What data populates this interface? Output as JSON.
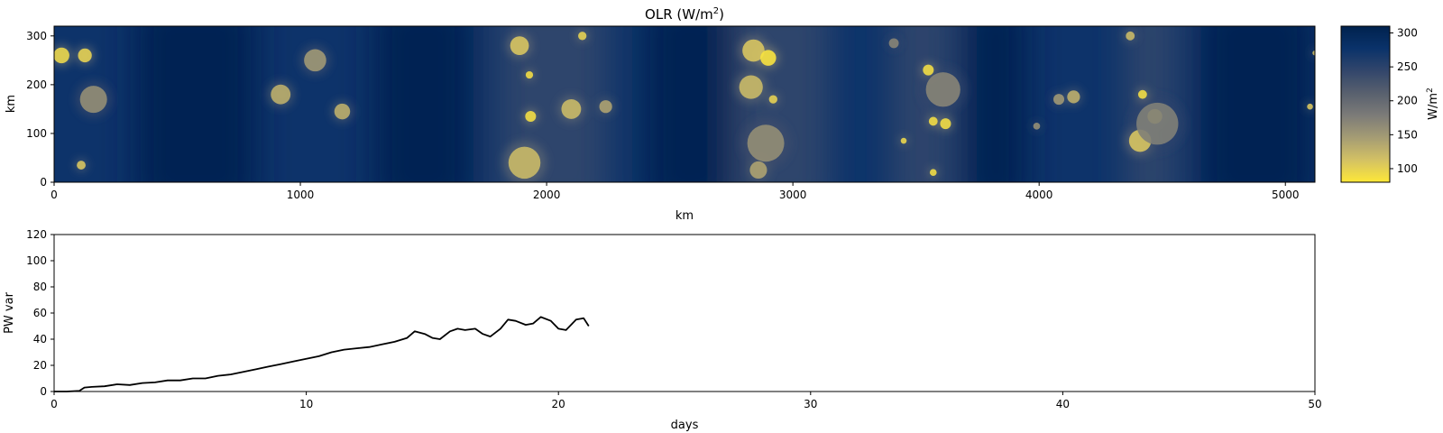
{
  "figure": {
    "background": "#ffffff"
  },
  "chart_data": [
    {
      "type": "heatmap",
      "title": "OLR (W/m²)",
      "title_base": "OLR (W/m",
      "title_sup": "2",
      "title_end": ")",
      "xlabel": "km",
      "ylabel": "km",
      "xlim": [
        0,
        5120
      ],
      "ylim": [
        0,
        320
      ],
      "xticks": [
        0,
        1000,
        2000,
        3000,
        4000,
        5000
      ],
      "yticks": [
        0,
        100,
        200,
        300
      ],
      "colormap": "cividis_r",
      "colorbar": {
        "label": "W/m²",
        "label_base": "W/m",
        "label_sup": "2",
        "range": [
          80,
          310
        ],
        "ticks": [
          100,
          150,
          200,
          250,
          300
        ],
        "colors": [
          "#fee838",
          "#d3c164",
          "#a59c74",
          "#7c7b78",
          "#58606e",
          "#32466b",
          "#0a326a",
          "#00224e"
        ]
      },
      "background_value": 275,
      "clear_bands_km": [
        [
          330,
          820
        ],
        [
          1300,
          1700
        ],
        [
          2400,
          2750
        ],
        [
          3700,
          3950
        ],
        [
          4650,
          5120
        ]
      ],
      "moist_bands_km": [
        [
          1800,
          2250
        ],
        [
          2750,
          3150
        ],
        [
          3400,
          3650
        ],
        [
          4350,
          4560
        ]
      ],
      "cells": [
        {
          "x": 30,
          "y": 260,
          "r": 32,
          "olr": 95
        },
        {
          "x": 125,
          "y": 260,
          "r": 28,
          "olr": 100
        },
        {
          "x": 160,
          "y": 170,
          "r": 55,
          "olr": 160
        },
        {
          "x": 110,
          "y": 35,
          "r": 18,
          "olr": 110
        },
        {
          "x": 920,
          "y": 180,
          "r": 40,
          "olr": 130
        },
        {
          "x": 1060,
          "y": 250,
          "r": 45,
          "olr": 150
        },
        {
          "x": 1170,
          "y": 145,
          "r": 32,
          "olr": 130
        },
        {
          "x": 1890,
          "y": 280,
          "r": 38,
          "olr": 110
        },
        {
          "x": 1930,
          "y": 220,
          "r": 15,
          "olr": 90
        },
        {
          "x": 1935,
          "y": 135,
          "r": 22,
          "olr": 90
        },
        {
          "x": 1910,
          "y": 40,
          "r": 65,
          "olr": 120
        },
        {
          "x": 2100,
          "y": 150,
          "r": 40,
          "olr": 120
        },
        {
          "x": 2145,
          "y": 300,
          "r": 17,
          "olr": 100
        },
        {
          "x": 2240,
          "y": 155,
          "r": 26,
          "olr": 140
        },
        {
          "x": 2840,
          "y": 270,
          "r": 45,
          "olr": 110
        },
        {
          "x": 2900,
          "y": 255,
          "r": 32,
          "olr": 85
        },
        {
          "x": 2830,
          "y": 195,
          "r": 48,
          "olr": 120
        },
        {
          "x": 2920,
          "y": 170,
          "r": 17,
          "olr": 100
        },
        {
          "x": 2890,
          "y": 80,
          "r": 75,
          "olr": 160
        },
        {
          "x": 2860,
          "y": 25,
          "r": 35,
          "olr": 140
        },
        {
          "x": 3550,
          "y": 230,
          "r": 22,
          "olr": 90
        },
        {
          "x": 3570,
          "y": 125,
          "r": 18,
          "olr": 90
        },
        {
          "x": 3620,
          "y": 120,
          "r": 22,
          "olr": 90
        },
        {
          "x": 3450,
          "y": 85,
          "r": 12,
          "olr": 95
        },
        {
          "x": 3570,
          "y": 20,
          "r": 14,
          "olr": 90
        },
        {
          "x": 3610,
          "y": 190,
          "r": 70,
          "olr": 170
        },
        {
          "x": 3410,
          "y": 285,
          "r": 20,
          "olr": 170
        },
        {
          "x": 3990,
          "y": 115,
          "r": 14,
          "olr": 160
        },
        {
          "x": 4080,
          "y": 170,
          "r": 22,
          "olr": 150
        },
        {
          "x": 4140,
          "y": 175,
          "r": 26,
          "olr": 130
        },
        {
          "x": 4370,
          "y": 300,
          "r": 18,
          "olr": 120
        },
        {
          "x": 4420,
          "y": 180,
          "r": 18,
          "olr": 90
        },
        {
          "x": 4470,
          "y": 135,
          "r": 30,
          "olr": 100
        },
        {
          "x": 4410,
          "y": 85,
          "r": 45,
          "olr": 110
        },
        {
          "x": 4480,
          "y": 120,
          "r": 85,
          "olr": 175
        },
        {
          "x": 5120,
          "y": 265,
          "r": 10,
          "olr": 120
        },
        {
          "x": 5100,
          "y": 155,
          "r": 12,
          "olr": 110
        }
      ]
    },
    {
      "type": "line",
      "xlabel": "days",
      "ylabel": "PW var",
      "xlim": [
        0,
        50
      ],
      "ylim": [
        0,
        120
      ],
      "xticks": [
        0,
        10,
        20,
        30,
        40,
        50
      ],
      "yticks": [
        0,
        20,
        40,
        60,
        80,
        100,
        120
      ],
      "line_color": "#000000",
      "series": [
        {
          "x": [
            0,
            0.5,
            1.0,
            1.2,
            1.5,
            2.0,
            2.5,
            3.0,
            3.5,
            4.0,
            4.5,
            5.0,
            5.5,
            6.0,
            6.5,
            7.0,
            7.5,
            8.0,
            8.5,
            9.0,
            9.5,
            10.0,
            10.5,
            11.0,
            11.5,
            12.0,
            12.5,
            13.0,
            13.5,
            14.0,
            14.3,
            14.7,
            15.0,
            15.3,
            15.7,
            16.0,
            16.3,
            16.7,
            17.0,
            17.3,
            17.7,
            18.0,
            18.3,
            18.7,
            19.0,
            19.3,
            19.7,
            20.0,
            20.3,
            20.7,
            21.0,
            21.2
          ],
          "y": [
            0,
            0,
            0.5,
            3,
            3.5,
            4,
            5.5,
            5,
            6.5,
            7,
            8.5,
            8.5,
            10,
            10,
            12,
            13,
            15,
            17,
            19,
            21,
            23,
            25,
            27,
            30,
            32,
            33,
            34,
            36,
            38,
            41,
            46,
            44,
            41,
            40,
            46,
            48,
            47,
            48,
            44,
            42,
            48,
            55,
            54,
            51,
            52,
            57,
            54,
            48,
            47,
            55,
            56,
            50
          ]
        }
      ]
    }
  ]
}
